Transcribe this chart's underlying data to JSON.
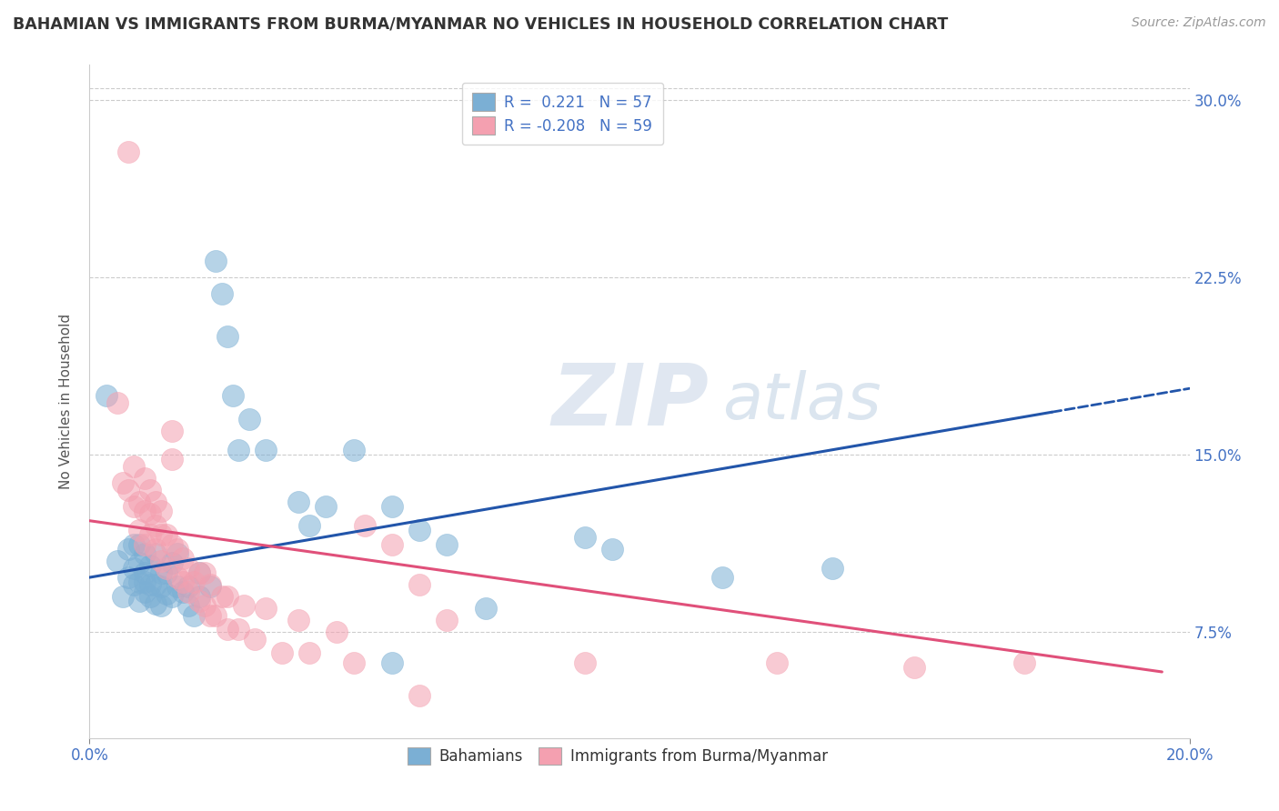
{
  "title": "BAHAMIAN VS IMMIGRANTS FROM BURMA/MYANMAR NO VEHICLES IN HOUSEHOLD CORRELATION CHART",
  "source": "Source: ZipAtlas.com",
  "ylabel": "No Vehicles in Household",
  "ytick_vals": [
    0.075,
    0.15,
    0.225,
    0.3
  ],
  "xmin": 0.0,
  "xmax": 0.2,
  "ymin": 0.03,
  "ymax": 0.315,
  "color_blue": "#7bafd4",
  "color_pink": "#f4a0b0",
  "watermark_zip": "ZIP",
  "watermark_atlas": "atlas",
  "blue_scatter": [
    [
      0.003,
      0.175
    ],
    [
      0.005,
      0.105
    ],
    [
      0.006,
      0.09
    ],
    [
      0.007,
      0.11
    ],
    [
      0.007,
      0.098
    ],
    [
      0.008,
      0.095
    ],
    [
      0.008,
      0.102
    ],
    [
      0.008,
      0.112
    ],
    [
      0.009,
      0.088
    ],
    [
      0.009,
      0.096
    ],
    [
      0.009,
      0.104
    ],
    [
      0.009,
      0.112
    ],
    [
      0.01,
      0.092
    ],
    [
      0.01,
      0.096
    ],
    [
      0.01,
      0.1
    ],
    [
      0.01,
      0.108
    ],
    [
      0.011,
      0.09
    ],
    [
      0.011,
      0.095
    ],
    [
      0.011,
      0.103
    ],
    [
      0.012,
      0.087
    ],
    [
      0.012,
      0.095
    ],
    [
      0.012,
      0.108
    ],
    [
      0.013,
      0.086
    ],
    [
      0.013,
      0.094
    ],
    [
      0.013,
      0.1
    ],
    [
      0.014,
      0.091
    ],
    [
      0.014,
      0.1
    ],
    [
      0.015,
      0.09
    ],
    [
      0.015,
      0.104
    ],
    [
      0.016,
      0.094
    ],
    [
      0.016,
      0.108
    ],
    [
      0.017,
      0.092
    ],
    [
      0.018,
      0.086
    ],
    [
      0.018,
      0.094
    ],
    [
      0.019,
      0.082
    ],
    [
      0.02,
      0.09
    ],
    [
      0.02,
      0.1
    ],
    [
      0.022,
      0.094
    ],
    [
      0.023,
      0.232
    ],
    [
      0.024,
      0.218
    ],
    [
      0.025,
      0.2
    ],
    [
      0.026,
      0.175
    ],
    [
      0.027,
      0.152
    ],
    [
      0.029,
      0.165
    ],
    [
      0.032,
      0.152
    ],
    [
      0.038,
      0.13
    ],
    [
      0.04,
      0.12
    ],
    [
      0.043,
      0.128
    ],
    [
      0.048,
      0.152
    ],
    [
      0.055,
      0.128
    ],
    [
      0.06,
      0.118
    ],
    [
      0.065,
      0.112
    ],
    [
      0.072,
      0.085
    ],
    [
      0.09,
      0.115
    ],
    [
      0.095,
      0.11
    ],
    [
      0.115,
      0.098
    ],
    [
      0.135,
      0.102
    ],
    [
      0.055,
      0.062
    ]
  ],
  "pink_scatter": [
    [
      0.005,
      0.172
    ],
    [
      0.006,
      0.138
    ],
    [
      0.007,
      0.135
    ],
    [
      0.008,
      0.128
    ],
    [
      0.008,
      0.145
    ],
    [
      0.009,
      0.118
    ],
    [
      0.009,
      0.13
    ],
    [
      0.01,
      0.112
    ],
    [
      0.01,
      0.126
    ],
    [
      0.01,
      0.14
    ],
    [
      0.011,
      0.116
    ],
    [
      0.011,
      0.125
    ],
    [
      0.011,
      0.135
    ],
    [
      0.012,
      0.11
    ],
    [
      0.012,
      0.12
    ],
    [
      0.012,
      0.13
    ],
    [
      0.013,
      0.105
    ],
    [
      0.013,
      0.116
    ],
    [
      0.013,
      0.126
    ],
    [
      0.014,
      0.102
    ],
    [
      0.014,
      0.116
    ],
    [
      0.015,
      0.148
    ],
    [
      0.015,
      0.16
    ],
    [
      0.015,
      0.112
    ],
    [
      0.016,
      0.098
    ],
    [
      0.016,
      0.11
    ],
    [
      0.017,
      0.096
    ],
    [
      0.017,
      0.106
    ],
    [
      0.018,
      0.092
    ],
    [
      0.018,
      0.102
    ],
    [
      0.019,
      0.096
    ],
    [
      0.02,
      0.088
    ],
    [
      0.02,
      0.1
    ],
    [
      0.021,
      0.086
    ],
    [
      0.021,
      0.1
    ],
    [
      0.022,
      0.082
    ],
    [
      0.022,
      0.095
    ],
    [
      0.023,
      0.082
    ],
    [
      0.024,
      0.09
    ],
    [
      0.025,
      0.076
    ],
    [
      0.025,
      0.09
    ],
    [
      0.027,
      0.076
    ],
    [
      0.028,
      0.086
    ],
    [
      0.03,
      0.072
    ],
    [
      0.032,
      0.085
    ],
    [
      0.035,
      0.066
    ],
    [
      0.038,
      0.08
    ],
    [
      0.04,
      0.066
    ],
    [
      0.045,
      0.075
    ],
    [
      0.048,
      0.062
    ],
    [
      0.007,
      0.278
    ],
    [
      0.05,
      0.12
    ],
    [
      0.055,
      0.112
    ],
    [
      0.06,
      0.095
    ],
    [
      0.065,
      0.08
    ],
    [
      0.09,
      0.062
    ],
    [
      0.125,
      0.062
    ],
    [
      0.15,
      0.06
    ],
    [
      0.17,
      0.062
    ],
    [
      0.06,
      0.048
    ]
  ],
  "blue_line_x": [
    0.0,
    0.175
  ],
  "blue_line_y": [
    0.098,
    0.168
  ],
  "pink_line_x": [
    0.0,
    0.195
  ],
  "pink_line_y": [
    0.122,
    0.058
  ],
  "grid_color": "#cccccc",
  "background_color": "#ffffff",
  "title_color": "#333333",
  "source_color": "#999999",
  "tick_color": "#4472c4",
  "ylabel_color": "#555555"
}
